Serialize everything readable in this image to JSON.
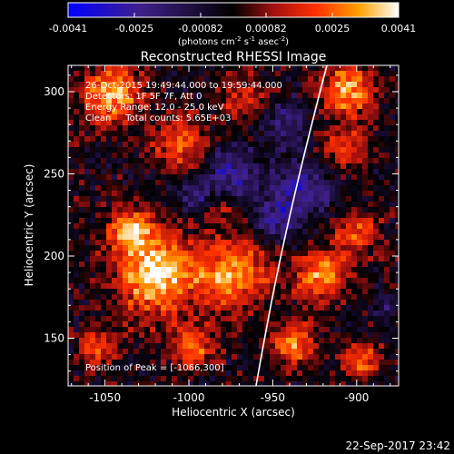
{
  "colorbar": {
    "ticks": [
      "-0.0041",
      "-0.0025",
      "-0.00082",
      "0.00082",
      "0.0025",
      "0.0041"
    ],
    "unit_main": "(photons cm",
    "unit_exp1": "-2",
    "unit_mid": " s",
    "unit_exp2": "-1",
    "unit_end": " asec",
    "unit_exp3": "-2",
    "unit_close": ")"
  },
  "title": "Reconstructed RHESSI Image",
  "annotations": {
    "time_range": "26-Oct-2015 19:49:44.000 to 19:59:44.000",
    "detectors": "Detectors: 1F 5F 7F, Att 0",
    "energy": "Energy Range: 12.0 - 25.0 keV",
    "clean": "Clean     Total counts: 5.65E+03",
    "peak": "Position of Peak = [-1066,300]"
  },
  "axes": {
    "xlabel": "Heliocentric X (arcsec)",
    "ylabel": "Heliocentric Y (arcsec)",
    "xticks": [
      {
        "value": -1050,
        "label": "-1050"
      },
      {
        "value": -1000,
        "label": "-1000"
      },
      {
        "value": -950,
        "label": "-950"
      },
      {
        "value": -900,
        "label": "-900"
      }
    ],
    "yticks": [
      {
        "value": 150,
        "label": "150"
      },
      {
        "value": 200,
        "label": "200"
      },
      {
        "value": 250,
        "label": "250"
      },
      {
        "value": 300,
        "label": "300"
      }
    ],
    "xlim": [
      -1072,
      -875
    ],
    "ylim": [
      121,
      316
    ]
  },
  "footer_timestamp": "22-Sep-2017 23:42",
  "colors": {
    "background": "#000000",
    "limb_line": "#ffffff",
    "colormap": [
      "#0000ff",
      "#40208a",
      "#000000",
      "#a01010",
      "#ff3000",
      "#ffa000",
      "#ffffff"
    ]
  }
}
